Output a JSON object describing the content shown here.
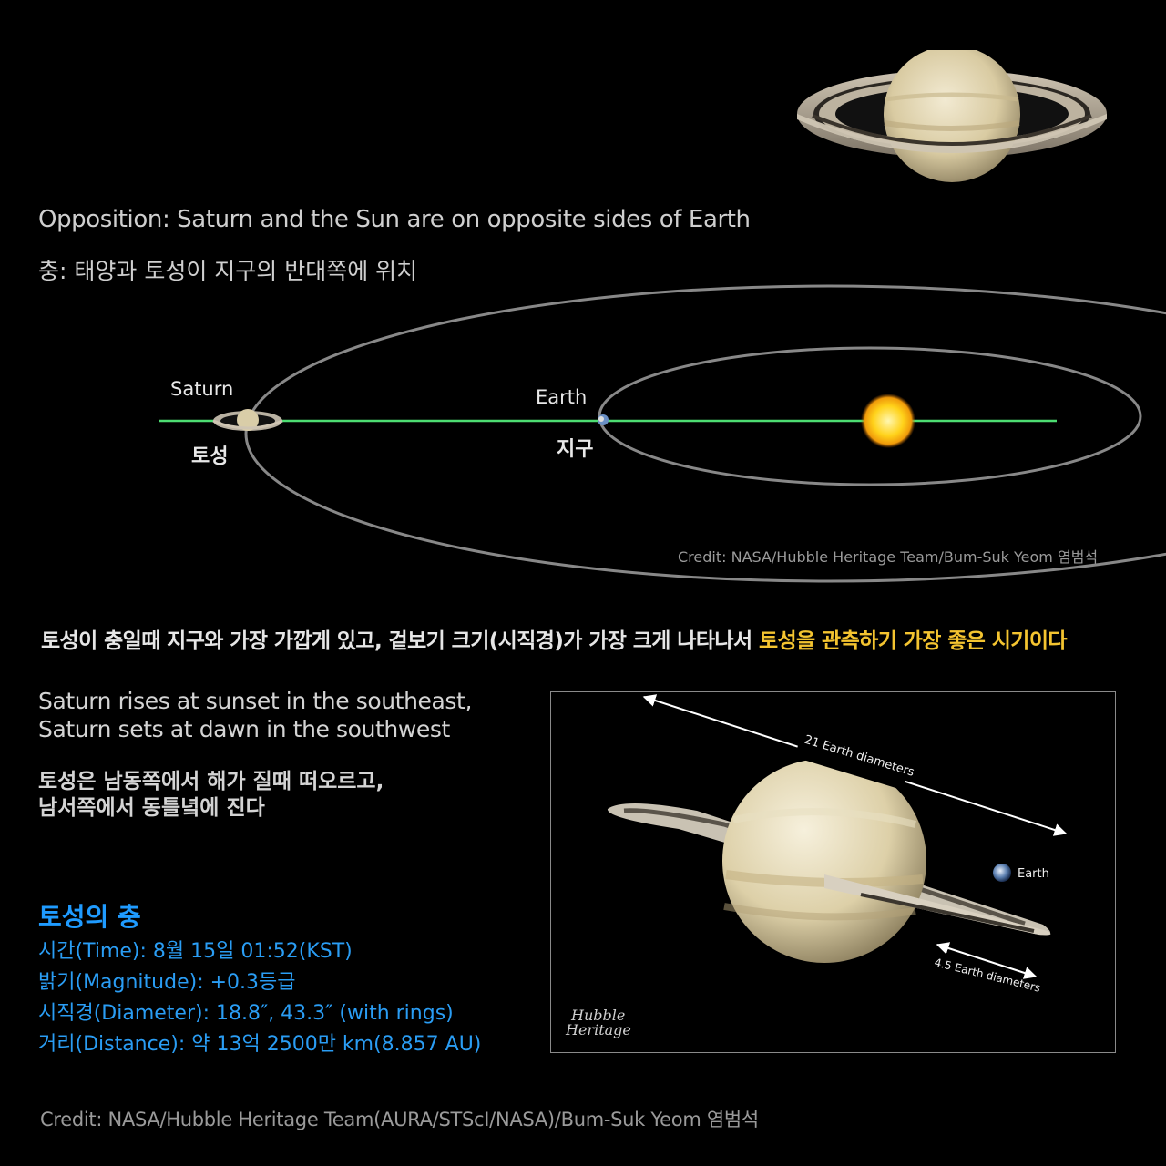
{
  "header": {
    "title_en": "Opposition: Saturn and the Sun are on opposite sides of Earth",
    "title_ko": "충: 태양과 토성이 지구의 반대쪽에 위치"
  },
  "diagram": {
    "saturn_label_en": "Saturn",
    "saturn_label_ko": "토성",
    "earth_label_en": "Earth",
    "earth_label_ko": "지구",
    "credit": "Credit: NASA/Hubble Heritage Team/Bum-Suk Yeom 염범석",
    "colors": {
      "line": "#4ddd72",
      "orbit": "#8a8a8a",
      "sun": "#ffd21a"
    }
  },
  "summary": {
    "text": "토성이 충일때 지구와 가장 가깝게 있고, 겉보기 크기(시직경)가 가장 크게 나타나서 ",
    "highlight": "토성을 관측하기 가장 좋은 시기이다",
    "highlight_color": "#f4c430"
  },
  "visibility": {
    "en_line1": "Saturn rises at sunset in the southeast,",
    "en_line2": "Saturn sets at dawn in the southwest",
    "ko_line1": "토성은 남동쪽에서 해가 질때 떠오르고,",
    "ko_line2": "남서쪽에서 동틀녘에 진다"
  },
  "facts": {
    "title": "토성의 충",
    "time": "시간(Time): 8월 15일 01:52(KST)",
    "magnitude": "밝기(Magnitude): +0.3등급",
    "diameter": "시직경(Diameter): 18.8″, 43.3″ (with rings)",
    "distance": "거리(Distance): 약 13억 2500만 km(8.857 AU)",
    "color": "#1f9bff"
  },
  "photo": {
    "ring_span_label": "21 Earth diameters",
    "earth_label": "Earth",
    "planet_label": "4.5 Earth diameters",
    "logo_line1": "Hubble",
    "logo_line2": "Heritage"
  },
  "footer": {
    "credit": "Credit: NASA/Hubble Heritage Team(AURA/STScI/NASA)/Bum-Suk Yeom 염범석"
  }
}
